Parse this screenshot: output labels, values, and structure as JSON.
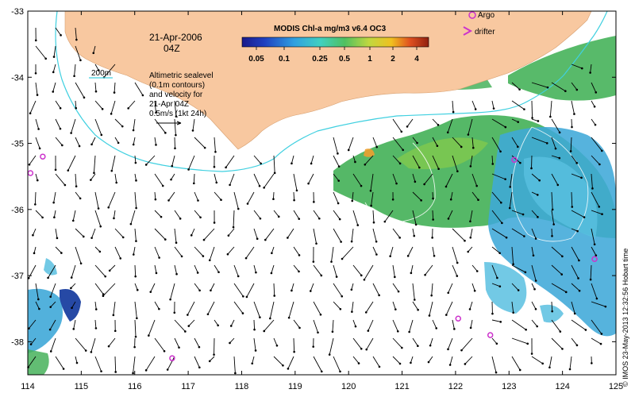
{
  "map": {
    "date_line1": "21-Apr-2006",
    "date_line2": "04Z",
    "contour_label": "200m",
    "sealevel_text": [
      "Altimetric sealevel",
      "(0.1m contours)",
      "and velocity for",
      "21-Apr 04Z",
      "0.5m/s (1kt 24h)"
    ],
    "colorbar_title": "MODIS Chl-a mg/m3 v6.4 OC3",
    "colorbar_ticks": [
      "0.05",
      "0.1",
      "0.25",
      "0.5",
      "1",
      "2",
      "4"
    ],
    "legend_argo": "Argo",
    "legend_drifter": "drifter",
    "credit": "© IMOS 23-May-2013 12:32:56 Hobart time",
    "x_ticks": [
      "114",
      "115",
      "116",
      "117",
      "118",
      "119",
      "120",
      "121",
      "122",
      "123",
      "124",
      "125"
    ],
    "y_ticks": [
      "-33",
      "-34",
      "-35",
      "-36",
      "-37",
      "-38"
    ],
    "lon_range": [
      114,
      125
    ],
    "lat_range": [
      -33,
      -38.5
    ]
  },
  "colors": {
    "land": "#f8c8a0",
    "isobath": "#40d0e0",
    "marker": "#cc33cc",
    "chl_green": "#40b060",
    "chl_cyan": "#3fa8d8",
    "chl_blue": "#1a3fa0"
  },
  "argo_floats": [
    {
      "lon": 114.05,
      "lat": -35.45
    },
    {
      "lon": 114.28,
      "lat": -35.2
    },
    {
      "lon": 116.7,
      "lat": -38.25
    },
    {
      "lon": 122.05,
      "lat": -37.65
    },
    {
      "lon": 122.65,
      "lat": -37.9
    },
    {
      "lon": 123.1,
      "lat": -35.25
    },
    {
      "lon": 124.6,
      "lat": -36.75
    }
  ]
}
